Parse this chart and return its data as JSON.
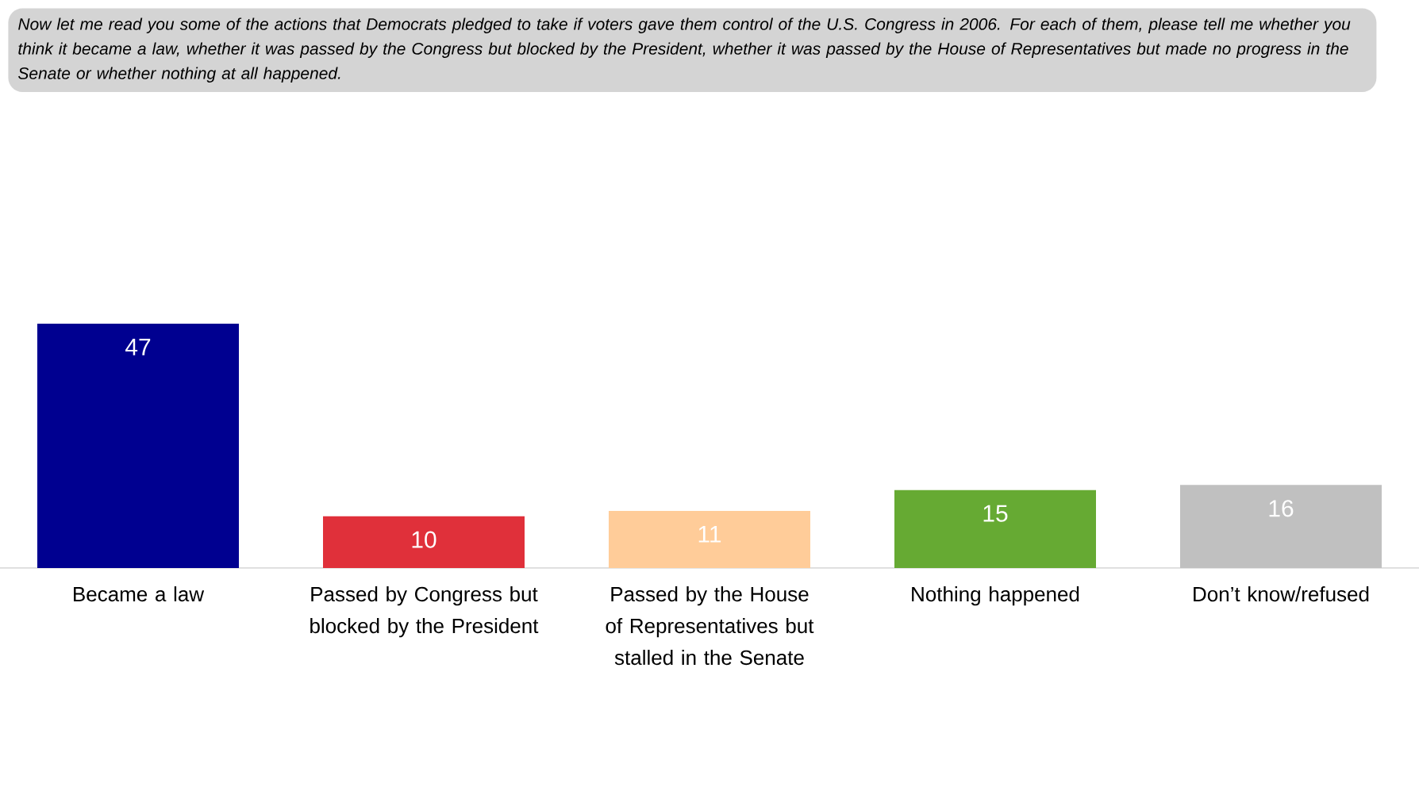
{
  "chart_data": {
    "type": "bar",
    "title": "Now let me read you some of the actions that Democrats pledged to take if voters gave them control of the U.S. Congress in 2006. For each of them, please tell me whether you think it became a law, whether it was passed by the Congress but blocked by the President, whether it was passed by the House of Representatives but made no progress in the Senate or whether nothing at all happened.",
    "categories": [
      "Became a law",
      "Passed by Congress but blocked by the President",
      "Passed by the House of Representatives but stalled in the Senate",
      "Nothing happened",
      "Don’t know/refused"
    ],
    "values": [
      47,
      10,
      11,
      15,
      16
    ],
    "colors": [
      "#000090",
      "#e0303a",
      "#ffcc99",
      "#66aa33",
      "#c0c0c0"
    ],
    "tick_labels": "x",
    "data_labels": true
  }
}
